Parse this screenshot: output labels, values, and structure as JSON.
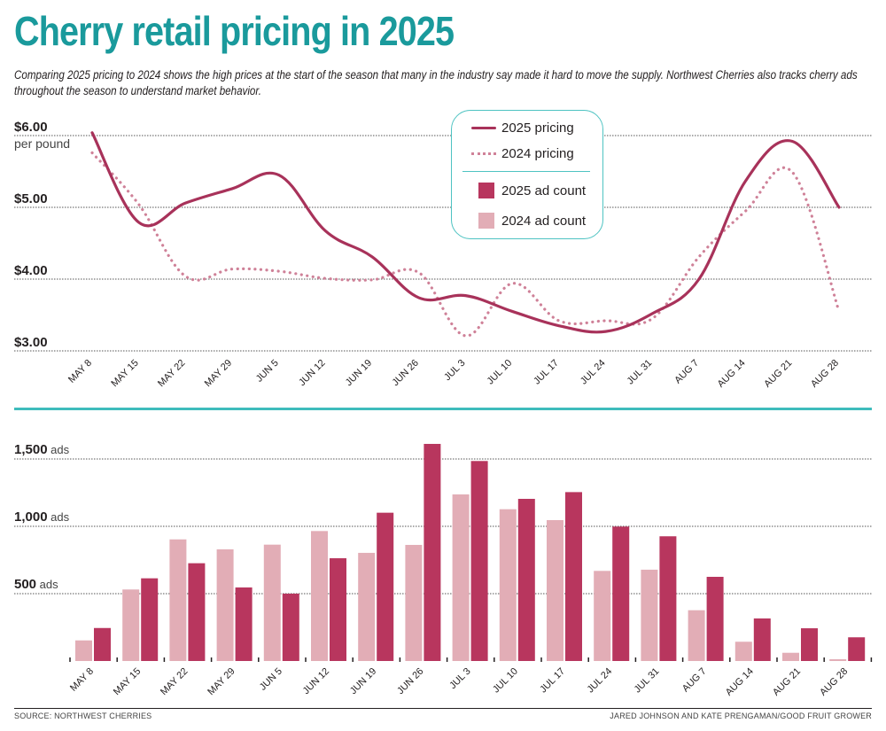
{
  "header": {
    "title": "Cherry retail pricing in 2025",
    "subtitle": "Comparing 2025 pricing to 2024 shows the high prices at the start of the season that many in the industry say made it hard to move the supply. Northwest Cherries also tracks cherry ads throughout the season to understand market behavior."
  },
  "legend": {
    "items": [
      {
        "label": "2025 pricing",
        "type": "solid-line",
        "color": "#a8325a"
      },
      {
        "label": "2024 pricing",
        "type": "dotted-line",
        "color": "#cf8198"
      },
      {
        "label": "2025 ad count",
        "type": "box",
        "color": "#b8365e"
      },
      {
        "label": "2024 ad count",
        "type": "box",
        "color": "#e2adb6"
      }
    ]
  },
  "colors": {
    "accent": "#1a9a9c",
    "divider": "#3fbcbc",
    "pricing_2025": "#a8325a",
    "pricing_2024": "#cf8198",
    "ads_2025": "#b8365e",
    "ads_2024": "#e2adb6"
  },
  "chart_data": [
    {
      "type": "line",
      "title": "Cherry retail pricing",
      "xlabel": "",
      "ylabel": "per pound",
      "ylim": [
        3,
        6
      ],
      "yticks": [
        {
          "value": 6,
          "label": "$6.00"
        },
        {
          "value": 5,
          "label": "$5.00"
        },
        {
          "value": 4,
          "label": "$4.00"
        },
        {
          "value": 3,
          "label": "$3.00"
        }
      ],
      "y_unit_label": "per pound",
      "grid": true,
      "legend_position": "top-center",
      "categories": [
        "MAY 8",
        "MAY 15",
        "MAY 22",
        "MAY 29",
        "JUN 5",
        "JUN 12",
        "JUN 19",
        "JUN 26",
        "JUL 3",
        "JUL 10",
        "JUL 17",
        "JUL 24",
        "JUL 31",
        "AUG 7",
        "AUG 14",
        "AUG 21",
        "AUG 28"
      ],
      "series": [
        {
          "name": "2025 pricing",
          "style": "solid",
          "values": [
            6.04,
            4.79,
            5.06,
            5.26,
            5.45,
            4.67,
            4.31,
            3.74,
            3.77,
            3.55,
            3.35,
            3.27,
            3.52,
            4.0,
            5.37,
            5.92,
            5.0
          ]
        },
        {
          "name": "2024 pricing",
          "style": "dotted",
          "values": [
            5.76,
            5.04,
            4.04,
            4.14,
            4.11,
            4.01,
            3.99,
            4.09,
            3.21,
            3.94,
            3.42,
            3.42,
            3.45,
            4.31,
            4.95,
            5.49,
            3.55
          ]
        }
      ]
    },
    {
      "type": "bar",
      "title": "Cherry ad count",
      "xlabel": "",
      "ylabel": "ads",
      "ylim": [
        0,
        1650
      ],
      "yticks": [
        {
          "value": 1500,
          "label": "1,500",
          "unit": "ads"
        },
        {
          "value": 1000,
          "label": "1,000",
          "unit": "ads"
        },
        {
          "value": 500,
          "label": "500",
          "unit": "ads"
        }
      ],
      "grid": true,
      "categories": [
        "MAY 8",
        "MAY 15",
        "MAY 22",
        "MAY 29",
        "JUN 5",
        "JUN 12",
        "JUN 19",
        "JUN 26",
        "JUL 3",
        "JUL 10",
        "JUL 17",
        "JUL 24",
        "JUL 31",
        "AUG 7",
        "AUG 14",
        "AUG 21",
        "AUG 28"
      ],
      "series": [
        {
          "name": "2024 ad count",
          "values": [
            153,
            531,
            903,
            829,
            864,
            965,
            803,
            862,
            1237,
            1127,
            1046,
            669,
            678,
            377,
            143,
            61,
            13
          ]
        },
        {
          "name": "2025 ad count",
          "values": [
            245,
            614,
            726,
            546,
            500,
            763,
            1101,
            1612,
            1485,
            1204,
            1254,
            998,
            926,
            625,
            316,
            243,
            176
          ]
        }
      ]
    }
  ],
  "footer": {
    "source": "SOURCE: NORTHWEST CHERRIES",
    "credit": "JARED JOHNSON AND KATE PRENGAMAN/GOOD FRUIT GROWER"
  }
}
